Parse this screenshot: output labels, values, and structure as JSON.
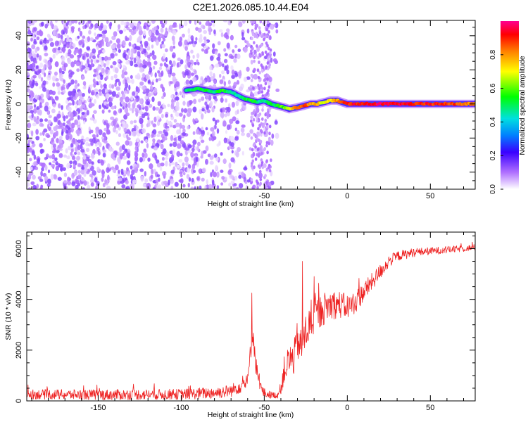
{
  "figure": {
    "title": "C2E1.2026.085.10.44.E04"
  },
  "chart_data": [
    {
      "type": "scatter",
      "panel": "spectrogram",
      "xlabel": "Height of straight line (km)",
      "ylabel": "Frequency (Hz)",
      "xlim": [
        -193,
        77
      ],
      "ylim": [
        -50,
        49
      ],
      "xticks": [
        -150,
        -100,
        -50,
        0,
        50
      ],
      "yticks": [
        -40,
        -20,
        0,
        20,
        40
      ],
      "grid": false,
      "colorbar": {
        "label": "Normalized spectral amplitude",
        "range": [
          0,
          1
        ],
        "ticks": [
          "0.0",
          "0.2",
          "0.4",
          "0.6",
          "0.8"
        ],
        "colormap": [
          "#ff0090",
          "#ff0000",
          "#ffa000",
          "#ffff00",
          "#00ff00",
          "#00e8c0",
          "#00b0ff",
          "#0000ff",
          "#8000ff",
          "#ffffff"
        ]
      },
      "series": [
        {
          "kind": "noise",
          "x_range": [
            -193,
            -42
          ],
          "y_range": [
            -50,
            49
          ],
          "amplitude_range": [
            0.02,
            0.15
          ],
          "gap_x_range": [
            -56,
            -49
          ]
        },
        {
          "kind": "carrier-line",
          "x": [
            -97,
            -90,
            -85,
            -80,
            -75,
            -70,
            -66,
            -62,
            -58,
            -54,
            -50,
            -46,
            -42,
            -38,
            -35,
            -30,
            -26,
            -22,
            -18,
            -14,
            -10,
            -6,
            -3,
            0,
            5,
            10,
            20,
            30,
            40,
            50,
            60,
            70,
            77
          ],
          "y": [
            8,
            9,
            8,
            7,
            8,
            7,
            5,
            3,
            2,
            1,
            2,
            0,
            -1,
            -2,
            -3,
            -2,
            -1,
            0,
            0,
            1,
            2,
            2,
            1,
            0,
            0,
            0,
            0,
            0,
            0,
            0,
            0,
            0,
            0
          ],
          "amplitude": [
            0.45,
            0.5,
            0.5,
            0.5,
            0.55,
            0.5,
            0.45,
            0.5,
            0.55,
            0.5,
            0.45,
            0.5,
            0.55,
            0.6,
            0.65,
            0.85,
            0.88,
            0.8,
            0.75,
            0.7,
            0.72,
            0.8,
            0.85,
            0.9,
            0.92,
            0.93,
            0.95,
            0.95,
            0.9,
            0.9,
            0.88,
            0.85,
            0.8
          ]
        }
      ]
    },
    {
      "type": "line",
      "panel": "snr",
      "xlabel": "Height of straight line (km)",
      "ylabel": "SNR (10 * v/v)",
      "xlim": [
        -193,
        77
      ],
      "ylim": [
        0,
        6650
      ],
      "xticks": [
        -150,
        -100,
        -50,
        0,
        50
      ],
      "yticks": [
        0,
        2000,
        4000,
        6000
      ],
      "grid": false,
      "color": "#ee2222",
      "series": [
        {
          "x": [
            -193,
            -150,
            -100,
            -80,
            -70,
            -60,
            -57,
            -55,
            -52,
            -50,
            -47,
            -44,
            -42,
            -40,
            -38,
            -35,
            -32,
            -30,
            -28,
            -25,
            -20,
            -15,
            -10,
            -5,
            0,
            5,
            10,
            15,
            20,
            25,
            30,
            40,
            50,
            60,
            70,
            77
          ],
          "y": [
            260,
            240,
            260,
            320,
            400,
            750,
            2800,
            1400,
            500,
            300,
            250,
            220,
            230,
            500,
            1200,
            1600,
            1700,
            2400,
            2100,
            2700,
            3300,
            3600,
            3800,
            3800,
            3700,
            3900,
            4300,
            4700,
            5100,
            5500,
            5700,
            5850,
            5900,
            5950,
            6000,
            6050
          ],
          "noise_amplitude": [
            380,
            420,
            420,
            480,
            500,
            650,
            1000,
            700,
            500,
            400,
            300,
            250,
            250,
            500,
            1100,
            1300,
            1400,
            1600,
            1500,
            1500,
            1400,
            1300,
            1200,
            1100,
            1000,
            900,
            800,
            700,
            600,
            500,
            400,
            350,
            300,
            280,
            250,
            250
          ],
          "peaks": [
            {
              "x": -57.5,
              "y": 4250
            },
            {
              "x": -27,
              "y": 5500
            },
            {
              "x": -20,
              "y": 4900
            }
          ]
        }
      ]
    }
  ]
}
